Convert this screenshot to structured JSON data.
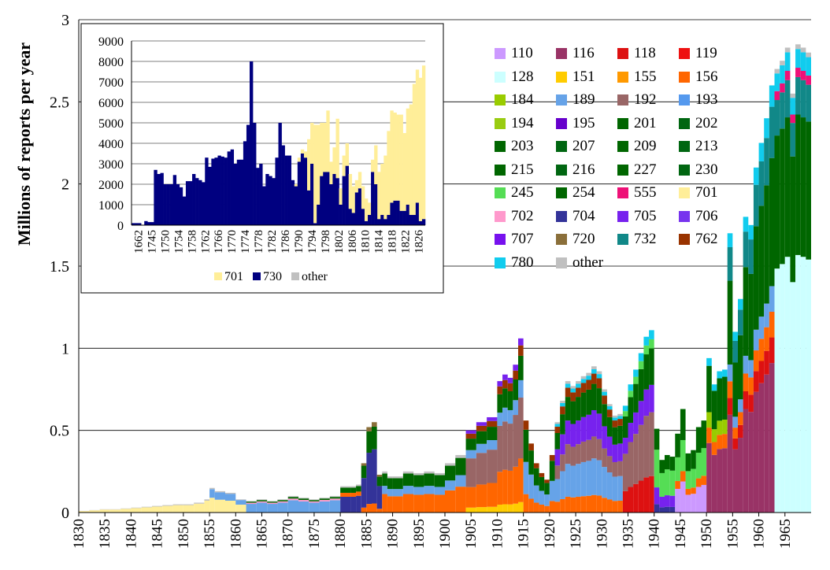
{
  "chart_data": [
    {
      "type": "bar",
      "stacked": true,
      "ylabel": "Millions of reports per year",
      "xlabel": "",
      "ylim": [
        0,
        3
      ],
      "yticks": [
        "0",
        "0.5",
        "1",
        "1.5",
        "2",
        "2.5",
        "3"
      ],
      "xlim": [
        1830,
        1970
      ],
      "xticks": [
        "1830",
        "1835",
        "1840",
        "1845",
        "1850",
        "1855",
        "1860",
        "1865",
        "1870",
        "1875",
        "1880",
        "1885",
        "1890",
        "1895",
        "1900",
        "1905",
        "1910",
        "1915",
        "1920",
        "1925",
        "1930",
        "1935",
        "1940",
        "1945",
        "1950",
        "1955",
        "1960",
        "1965"
      ],
      "grid": "horizontal",
      "legend_position": "top-right",
      "legend": [
        {
          "name": "110",
          "color": "#cc99ff"
        },
        {
          "name": "116",
          "color": "#993366"
        },
        {
          "name": "118",
          "color": "#dd1111"
        },
        {
          "name": "119",
          "color": "#ee1111"
        },
        {
          "name": "128",
          "color": "#ccffff"
        },
        {
          "name": "151",
          "color": "#ffcc00"
        },
        {
          "name": "155",
          "color": "#ff9900"
        },
        {
          "name": "156",
          "color": "#ff6600"
        },
        {
          "name": "184",
          "color": "#99cc00"
        },
        {
          "name": "189",
          "color": "#66a3e8"
        },
        {
          "name": "192",
          "color": "#996666"
        },
        {
          "name": "193",
          "color": "#5599ee"
        },
        {
          "name": "194",
          "color": "#99cc11"
        },
        {
          "name": "195",
          "color": "#6600cc"
        },
        {
          "name": "201",
          "color": "#006600"
        },
        {
          "name": "202",
          "color": "#006611"
        },
        {
          "name": "203",
          "color": "#006600"
        },
        {
          "name": "207",
          "color": "#006611"
        },
        {
          "name": "209",
          "color": "#006600"
        },
        {
          "name": "213",
          "color": "#006611"
        },
        {
          "name": "215",
          "color": "#006600"
        },
        {
          "name": "216",
          "color": "#006611"
        },
        {
          "name": "227",
          "color": "#006600"
        },
        {
          "name": "230",
          "color": "#006611"
        },
        {
          "name": "245",
          "color": "#55dd55"
        },
        {
          "name": "254",
          "color": "#006600"
        },
        {
          "name": "555",
          "color": "#ee1177"
        },
        {
          "name": "701",
          "color": "#ffee99"
        },
        {
          "name": "702",
          "color": "#ff99cc"
        },
        {
          "name": "704",
          "color": "#333399"
        },
        {
          "name": "705",
          "color": "#7722ee"
        },
        {
          "name": "706",
          "color": "#7733ee"
        },
        {
          "name": "707",
          "color": "#7711ee"
        },
        {
          "name": "720",
          "color": "#8a6f3a"
        },
        {
          "name": "732",
          "color": "#118888"
        },
        {
          "name": "762",
          "color": "#993300"
        },
        {
          "name": "780",
          "color": "#11ccee"
        },
        {
          "name": "other",
          "color": "#c0c0c0"
        }
      ],
      "totals": {
        "x": [
          1830,
          1832,
          1834,
          1836,
          1838,
          1840,
          1842,
          1844,
          1846,
          1848,
          1850,
          1852,
          1854,
          1855,
          1856,
          1858,
          1860,
          1862,
          1864,
          1866,
          1868,
          1870,
          1872,
          1874,
          1876,
          1878,
          1880,
          1882,
          1883,
          1884,
          1885,
          1886,
          1887,
          1888,
          1889,
          1890,
          1892,
          1894,
          1896,
          1898,
          1900,
          1902,
          1904,
          1906,
          1908,
          1910,
          1911,
          1912,
          1913,
          1914,
          1915,
          1916,
          1917,
          1918,
          1919,
          1920,
          1921,
          1922,
          1923,
          1924,
          1925,
          1926,
          1927,
          1928,
          1929,
          1930,
          1931,
          1932,
          1933,
          1934,
          1935,
          1936,
          1937,
          1938,
          1939,
          1940,
          1941,
          1942,
          1943,
          1944,
          1945,
          1946,
          1947,
          1948,
          1949,
          1950,
          1951,
          1952,
          1953,
          1954,
          1955,
          1956,
          1957,
          1958,
          1959,
          1960,
          1961,
          1962,
          1963,
          1964,
          1965,
          1966,
          1967,
          1968,
          1969
        ],
        "y": [
          0.01,
          0.015,
          0.02,
          0.02,
          0.025,
          0.03,
          0.035,
          0.04,
          0.045,
          0.05,
          0.05,
          0.06,
          0.08,
          0.15,
          0.13,
          0.12,
          0.08,
          0.07,
          0.08,
          0.07,
          0.08,
          0.1,
          0.09,
          0.08,
          0.09,
          0.1,
          0.16,
          0.16,
          0.17,
          0.3,
          0.52,
          0.55,
          0.23,
          0.25,
          0.22,
          0.22,
          0.25,
          0.24,
          0.25,
          0.24,
          0.3,
          0.35,
          0.5,
          0.55,
          0.58,
          0.8,
          0.84,
          0.82,
          0.9,
          1.06,
          0.56,
          0.42,
          0.3,
          0.24,
          0.2,
          0.35,
          0.55,
          0.68,
          0.8,
          0.77,
          0.8,
          0.83,
          0.85,
          0.89,
          0.86,
          0.75,
          0.66,
          0.59,
          0.6,
          0.65,
          0.78,
          0.87,
          0.97,
          1.07,
          1.11,
          0.51,
          0.32,
          0.35,
          0.34,
          0.48,
          0.63,
          0.36,
          0.38,
          0.52,
          0.56,
          0.94,
          0.78,
          0.86,
          0.87,
          1.7,
          1.1,
          1.3,
          1.8,
          1.75,
          2.1,
          2.25,
          2.4,
          2.6,
          2.7,
          2.75,
          2.83,
          2.55,
          2.85,
          2.83,
          2.8
        ]
      }
    },
    {
      "type": "bar",
      "stacked": true,
      "title": "",
      "ylim": [
        0,
        9000
      ],
      "yticks": [
        "0",
        "1000",
        "2000",
        "3000",
        "4000",
        "5000",
        "6000",
        "7000",
        "8000",
        "9000"
      ],
      "xticks": [
        "1662",
        "1745",
        "1750",
        "1754",
        "1758",
        "1762",
        "1766",
        "1770",
        "1774",
        "1778",
        "1782",
        "1786",
        "1790",
        "1794",
        "1798",
        "1802",
        "1806",
        "1810",
        "1814",
        "1818",
        "1822",
        "1826"
      ],
      "grid": "horizontal",
      "legend_position": "bottom",
      "legend": [
        {
          "name": "701",
          "color": "#ffee99"
        },
        {
          "name": "730",
          "color": "#000080"
        },
        {
          "name": "other",
          "color": "#c0c0c0"
        }
      ],
      "series": [
        {
          "name": "730",
          "values": [
            100,
            100,
            100,
            0,
            200,
            150,
            150,
            2700,
            2500,
            2550,
            2000,
            2000,
            2000,
            2450,
            2000,
            1850,
            1400,
            2150,
            2150,
            2500,
            2300,
            2200,
            2100,
            3300,
            2850,
            3250,
            3300,
            3400,
            3350,
            3300,
            3600,
            3700,
            3000,
            3200,
            3200,
            4100,
            4900,
            8000,
            5000,
            2800,
            3000,
            1900,
            2500,
            2400,
            2300,
            3300,
            5000,
            3900,
            3400,
            3400,
            2200,
            1900,
            3100,
            3500,
            3300,
            1700,
            3000,
            100,
            1000,
            2400,
            2600,
            2600,
            2000,
            2500,
            2300,
            1000,
            2400,
            2900,
            800,
            600,
            1600,
            1800,
            800,
            200,
            500,
            2600,
            2000,
            300,
            500,
            300,
            500,
            1100,
            1200,
            1200,
            700,
            700,
            1000,
            500,
            500,
            1100,
            200,
            300
          ]
        },
        {
          "name": "701",
          "values": [
            0,
            0,
            0,
            0,
            0,
            0,
            0,
            0,
            0,
            0,
            0,
            0,
            0,
            0,
            0,
            0,
            0,
            0,
            0,
            0,
            0,
            0,
            0,
            0,
            0,
            0,
            0,
            0,
            0,
            0,
            0,
            0,
            0,
            0,
            0,
            0,
            0,
            0,
            0,
            0,
            0,
            0,
            0,
            0,
            0,
            0,
            0,
            0,
            0,
            0,
            0,
            100,
            200,
            200,
            300,
            2500,
            2000,
            4800,
            3900,
            2600,
            2400,
            3000,
            1100,
            1300,
            2900,
            800,
            1000,
            1100,
            1700,
            1300,
            600,
            800,
            1100,
            1100,
            600,
            600,
            1900,
            2300,
            2500,
            3100,
            4100,
            4500,
            4300,
            4200,
            4700,
            3800,
            4700,
            5400,
            6400,
            6500,
            7000,
            7500
          ]
        },
        {
          "name": "other",
          "values": [
            0,
            0,
            0,
            0,
            0,
            0,
            0,
            0,
            0,
            0,
            0,
            0,
            0,
            0,
            0,
            0,
            0,
            0,
            0,
            0,
            0,
            0,
            0,
            0,
            0,
            0,
            0,
            0,
            0,
            0,
            0,
            0,
            0,
            0,
            0,
            0,
            0,
            0,
            0,
            0,
            0,
            0,
            0,
            0,
            0,
            0,
            0,
            0,
            0,
            0,
            0,
            0,
            0,
            0,
            0,
            0,
            0,
            0,
            0,
            0,
            0,
            0,
            0,
            0,
            0,
            0,
            0,
            0,
            0,
            0,
            0,
            0,
            0,
            0,
            0,
            0,
            0,
            0,
            0,
            0,
            0,
            0,
            0,
            0,
            0,
            0,
            0,
            0,
            0,
            0,
            0,
            0
          ]
        }
      ]
    }
  ]
}
